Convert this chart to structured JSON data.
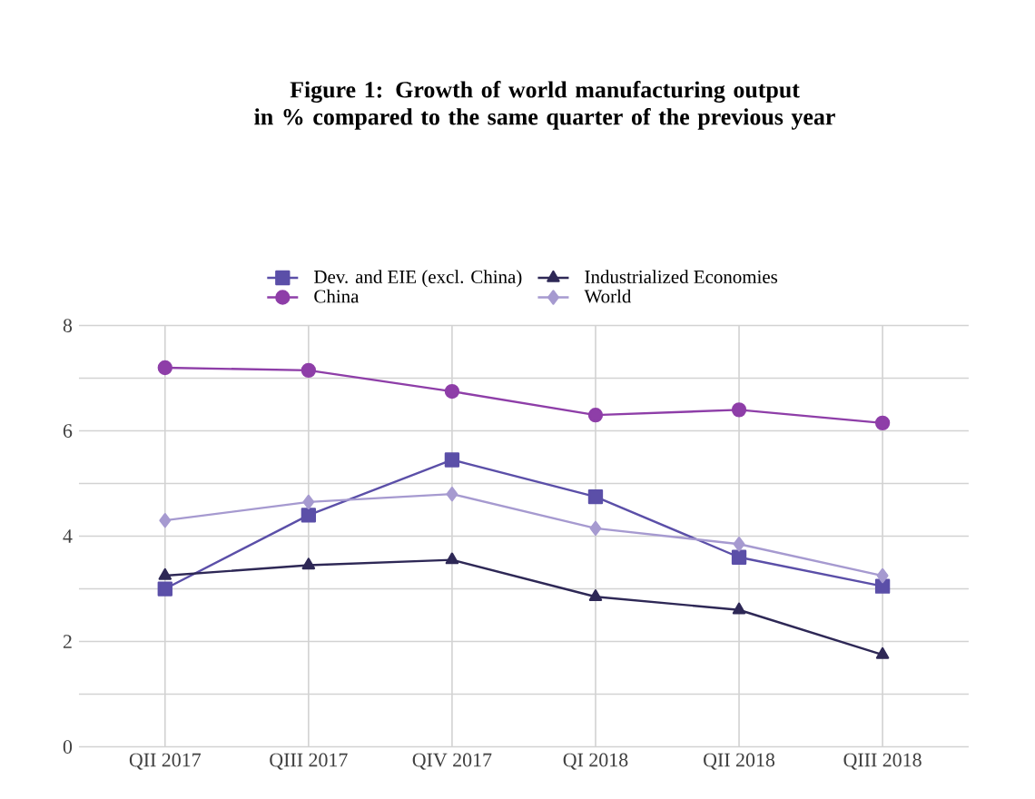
{
  "chart_data": {
    "type": "line",
    "title": "Figure 1: Growth of world manufacturing output\nin % compared to the same quarter of the previous year",
    "categories": [
      "QII 2017",
      "QIII 2017",
      "QIV 2017",
      "QI 2018",
      "QII 2018",
      "QIII 2018"
    ],
    "series": [
      {
        "name": "Dev. and EIE (excl. China)",
        "color": "#5b4fa8",
        "marker": "square",
        "values": [
          3.0,
          4.4,
          5.45,
          4.75,
          3.6,
          3.05
        ]
      },
      {
        "name": "Industrialized Economies",
        "color": "#2e2856",
        "marker": "triangle",
        "values": [
          3.25,
          3.45,
          3.55,
          2.85,
          2.6,
          1.75
        ]
      },
      {
        "name": "China",
        "color": "#8e3ea8",
        "marker": "circle",
        "values": [
          7.2,
          7.15,
          6.75,
          6.3,
          6.4,
          6.15
        ]
      },
      {
        "name": "World",
        "color": "#a69ad0",
        "marker": "diamond",
        "values": [
          4.3,
          4.65,
          4.8,
          4.15,
          3.85,
          3.25
        ]
      }
    ],
    "ylim": [
      0,
      8
    ],
    "yticks": [
      0,
      {
        "value": 1,
        "label": null
      },
      2,
      {
        "value": 3,
        "label": null
      },
      4,
      {
        "value": 5,
        "label": null
      },
      6,
      {
        "value": 7,
        "label": null
      },
      8
    ],
    "grid": true,
    "legend": "top",
    "line_style": "solid"
  }
}
